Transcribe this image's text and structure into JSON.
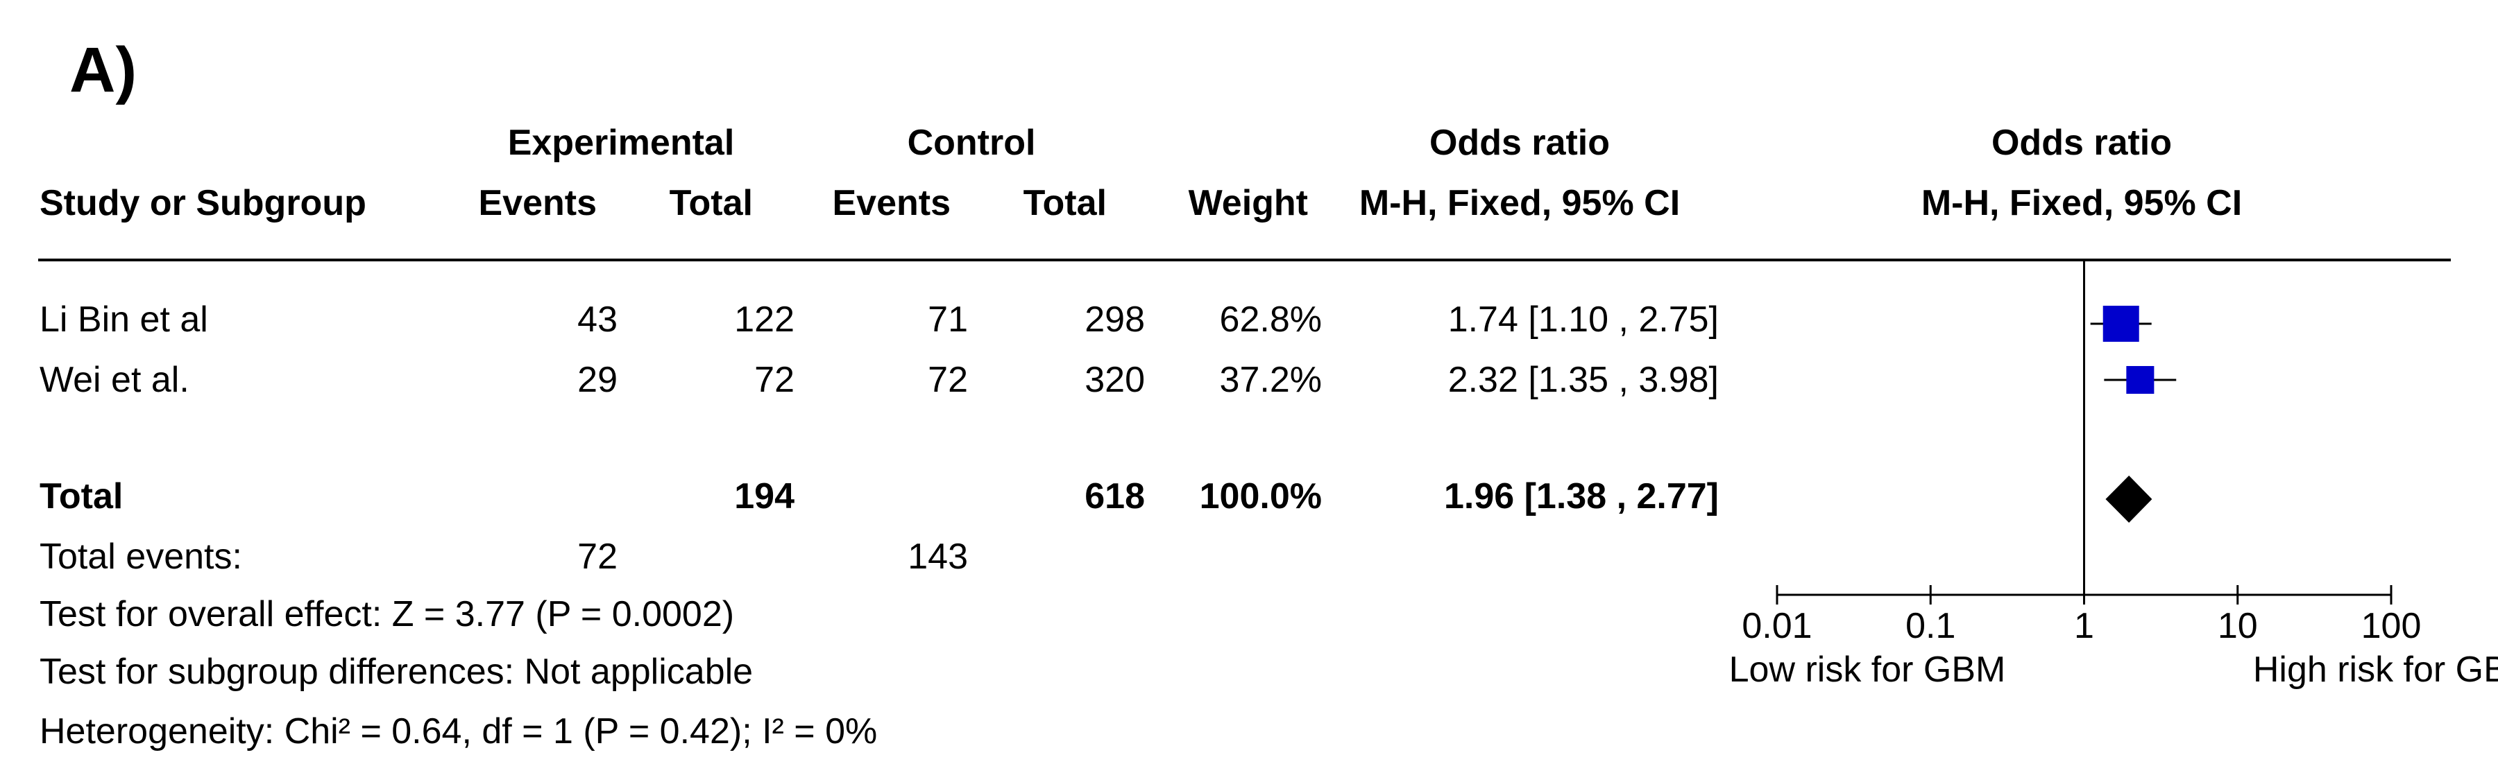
{
  "panel_label": "A)",
  "header": {
    "experimental": "Experimental",
    "control": "Control",
    "odds_ratio_left": "Odds ratio",
    "odds_ratio_right": "Odds ratio",
    "study": "Study or Subgroup",
    "events_exp": "Events",
    "total_exp": "Total",
    "events_ctl": "Events",
    "total_ctl": "Total",
    "weight": "Weight",
    "method_left": "M-H, Fixed, 95% CI",
    "method_right": "M-H, Fixed, 95% CI"
  },
  "rows": [
    {
      "study": "Li Bin et al",
      "exp_events": "43",
      "exp_total": "122",
      "ctl_events": "71",
      "ctl_total": "298",
      "weight": "62.8%",
      "ci": "1.74 [1.10 , 2.75]"
    },
    {
      "study": "Wei et al.",
      "exp_events": "29",
      "exp_total": "72",
      "ctl_events": "72",
      "ctl_total": "320",
      "weight": "37.2%",
      "ci": "2.32 [1.35 , 3.98]"
    }
  ],
  "total": {
    "label": "Total",
    "exp_total": "194",
    "ctl_total": "618",
    "weight": "100.0%",
    "ci": "1.96 [1.38 , 2.77]"
  },
  "total_events": {
    "label": "Total events:",
    "exp": "72",
    "ctl": "143"
  },
  "footer": {
    "overall_effect": "Test for overall effect: Z = 3.77 (P = 0.0002)",
    "subgroup": "Test for subgroup differences: Not applicable",
    "heterogeneity": "Heterogeneity: Chi² = 0.64, df = 1 (P = 0.42); I² = 0%"
  },
  "colors": {
    "study_marker": "#0000cc",
    "summary_marker": "#000000"
  },
  "chart_data": {
    "type": "forest",
    "scale": "log",
    "xlim": [
      0.01,
      100
    ],
    "ticks": [
      0.01,
      0.1,
      1,
      10,
      100
    ],
    "tick_labels": [
      "0.01",
      "0.1",
      "1",
      "10",
      "100"
    ],
    "reference": 1,
    "left_label": "Low risk for GBM",
    "right_label": "High risk for GBM",
    "studies": [
      {
        "name": "Li Bin et al",
        "or": 1.74,
        "lower": 1.1,
        "upper": 2.75,
        "weight": 62.8
      },
      {
        "name": "Wei et al.",
        "or": 2.32,
        "lower": 1.35,
        "upper": 3.98,
        "weight": 37.2
      }
    ],
    "summary": {
      "or": 1.96,
      "lower": 1.38,
      "upper": 2.77
    }
  }
}
